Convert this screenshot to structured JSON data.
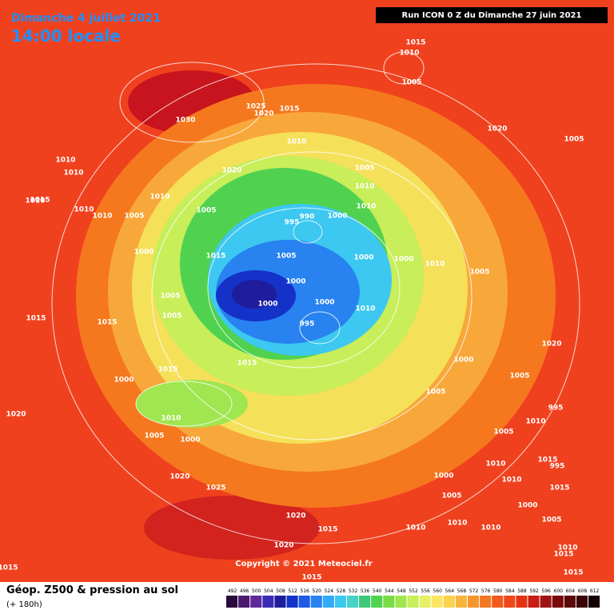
{
  "header": {
    "date": "Dimanche 4 juillet 2021",
    "time": "14:00 locale",
    "run": "Run ICON 0 Z du Dimanche 27 juin 2021"
  },
  "map": {
    "copyright": "Copyright © 2021 Meteociel.fr",
    "isobar_labels": [
      "1015",
      "1010",
      "1005",
      "1025",
      "1015",
      "1020",
      "1030",
      "1010",
      "1010",
      "1010",
      "1015",
      "1020",
      "1010",
      "1005",
      "1005",
      "1010",
      "1010",
      "995",
      "990",
      "1000",
      "1005",
      "1000",
      "1000",
      "1000",
      "995",
      "1000",
      "1010",
      "1015",
      "1010",
      "1005",
      "1010",
      "1015",
      "1005",
      "1010",
      "1000",
      "1005",
      "1015",
      "1015",
      "1020",
      "1005",
      "1000",
      "1005",
      "1010",
      "1015",
      "1020",
      "1025",
      "1020",
      "1015",
      "1010",
      "1020",
      "1015",
      "1000",
      "1005",
      "1010",
      "1015",
      "1010",
      "1020",
      "1000",
      "1005",
      "1000",
      "995",
      "1005",
      "1010",
      "1015",
      "1010",
      "1000",
      "1005",
      "1010",
      "1015",
      "1020",
      "1000",
      "1005",
      "995",
      "1000",
      "1010",
      "1015",
      "1005",
      "1010",
      "1015"
    ]
  },
  "footer": {
    "title": "Géop. Z500 & pression au sol",
    "lead": "(+ 180h)",
    "scale": [
      492,
      496,
      500,
      504,
      508,
      512,
      516,
      520,
      524,
      528,
      532,
      536,
      540,
      544,
      548,
      552,
      556,
      560,
      564,
      568,
      572,
      576,
      580,
      584,
      588,
      592,
      596,
      600,
      604,
      608,
      612
    ],
    "scale_colors": [
      "#2a0a3a",
      "#4b1a6e",
      "#5e2a9a",
      "#3c2ab4",
      "#1e1e9c",
      "#1432c8",
      "#1e5ae6",
      "#2882f0",
      "#32aaf5",
      "#3cc8f0",
      "#46d2c8",
      "#3cc878",
      "#50d250",
      "#78dc46",
      "#a0e650",
      "#c8ee5a",
      "#e6f064",
      "#fae664",
      "#fad250",
      "#f8b43c",
      "#f5962d",
      "#f27823",
      "#f05a1e",
      "#ee4619",
      "#e63214",
      "#c81e14",
      "#a01414",
      "#7a0a0a",
      "#5a0a0a",
      "#3c0505",
      "#140000"
    ]
  }
}
